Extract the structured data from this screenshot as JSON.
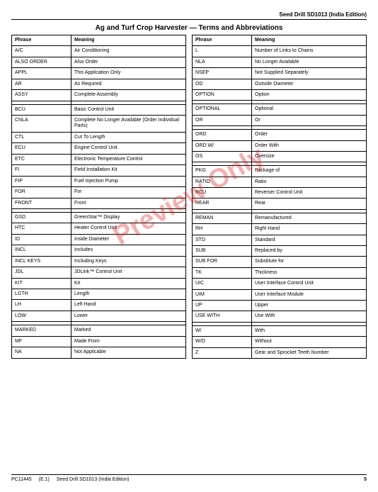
{
  "header": {
    "doc_title": "Seed Drill SD1013 (India Edition)"
  },
  "title": "Ag and Turf Crop Harvester — Terms and Abbreviations",
  "watermark": "Preview Only",
  "table": {
    "col1_header": "Phrase",
    "col2_header": "Meaning",
    "left_groups": [
      [
        [
          "A/C",
          "Air Conditioning"
        ],
        [
          "ALSO ORDER",
          "Also Order"
        ],
        [
          "APPL",
          "This Application Only"
        ],
        [
          "AR",
          "As Required"
        ],
        [
          "ASSY",
          "Complete Assembly"
        ]
      ],
      [
        [
          "BCU",
          "Basic Control Unit"
        ],
        [
          "CNLA",
          "Complete No Longer Available (Order Individual Parts)"
        ],
        [
          "CTL",
          "Cut To Length"
        ],
        [
          "ECU",
          "Engine Control Unit"
        ],
        [
          "ETC",
          "Electronic Temperature Control"
        ],
        [
          "FI",
          "Field Installation Kit"
        ],
        [
          "FIP",
          "Fuel Injection Pump"
        ],
        [
          "FOR",
          "For"
        ],
        [
          "FRONT",
          "Front"
        ]
      ],
      [
        [
          "GSD",
          "GreenStar™ Display"
        ],
        [
          "HTC",
          "Heater Control Unit"
        ],
        [
          "ID",
          "Inside Diameter"
        ],
        [
          "INCL",
          "Includes"
        ],
        [
          "INCL KEYS",
          "Including Keys"
        ],
        [
          "JDL",
          "JDLink™ Control Unit"
        ],
        [
          "KIT",
          "Kit"
        ],
        [
          "LGTH",
          "Length"
        ],
        [
          "LH",
          "Left Hand"
        ],
        [
          "LOW",
          "Lower"
        ]
      ],
      [
        [
          "MARKED",
          "Marked"
        ],
        [
          "MF",
          "Made From"
        ],
        [
          "NA",
          "Not Applicable"
        ]
      ]
    ],
    "right_groups": [
      [
        [
          "L",
          "Number of Links to Chains"
        ],
        [
          "NLA",
          "No Longer Available"
        ],
        [
          "NSEP",
          "Not Supplied Separately"
        ],
        [
          "OD",
          "Outside Diameter"
        ],
        [
          "OPTION",
          "Option"
        ]
      ],
      [
        [
          "OPTIONAL",
          "Optional"
        ],
        [
          "OR",
          "Or"
        ]
      ],
      [
        [
          "ORD",
          "Order"
        ],
        [
          "ORD W/",
          "Order With"
        ],
        [
          "OS",
          "Oversize"
        ]
      ],
      [
        [
          "PKG",
          "Package of"
        ],
        [
          "RATIO",
          "Ratio"
        ],
        [
          "RCU",
          "Reverser Control Unit"
        ],
        [
          "REAR",
          "Rear"
        ]
      ],
      [
        [
          "REMAN",
          "Remanufactured"
        ],
        [
          "RH",
          "Right Hand"
        ],
        [
          "STD",
          "Standard"
        ],
        [
          "SUB",
          "Replaced by"
        ],
        [
          "SUB FOR",
          "Substitute for"
        ],
        [
          "TK",
          "Thickness"
        ],
        [
          "UIC",
          "User Interface Control Unit"
        ],
        [
          "UIM",
          "User Interface Module"
        ],
        [
          "UP",
          "Upper"
        ],
        [
          "USE WITH",
          "Use With"
        ]
      ],
      [
        [
          "W/",
          "With"
        ],
        [
          "W/O",
          "Without"
        ],
        [
          "Z",
          "Gear and Sprocket Teeth Number"
        ]
      ]
    ]
  },
  "footer": {
    "code": "PC11445",
    "rev": "(E.1)",
    "name": "Seed Drill SD1013 (India Edition)",
    "page": "5"
  }
}
